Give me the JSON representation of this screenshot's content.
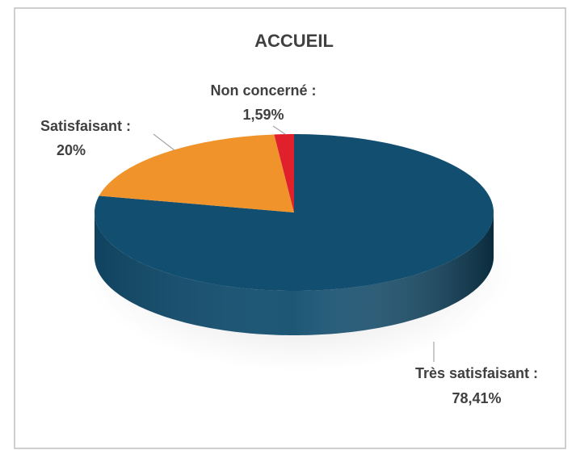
{
  "chart_data": {
    "type": "pie",
    "title": "ACCUEIL",
    "categories": [
      "Très satisfaisant :",
      "Satisfaisant :",
      "Non concerné :"
    ],
    "values": [
      78.41,
      20,
      1.59
    ],
    "value_labels": [
      "78,41%",
      "20%",
      "1,59%"
    ],
    "colors": [
      "#124e6f",
      "#f0932a",
      "#e0202a"
    ]
  }
}
